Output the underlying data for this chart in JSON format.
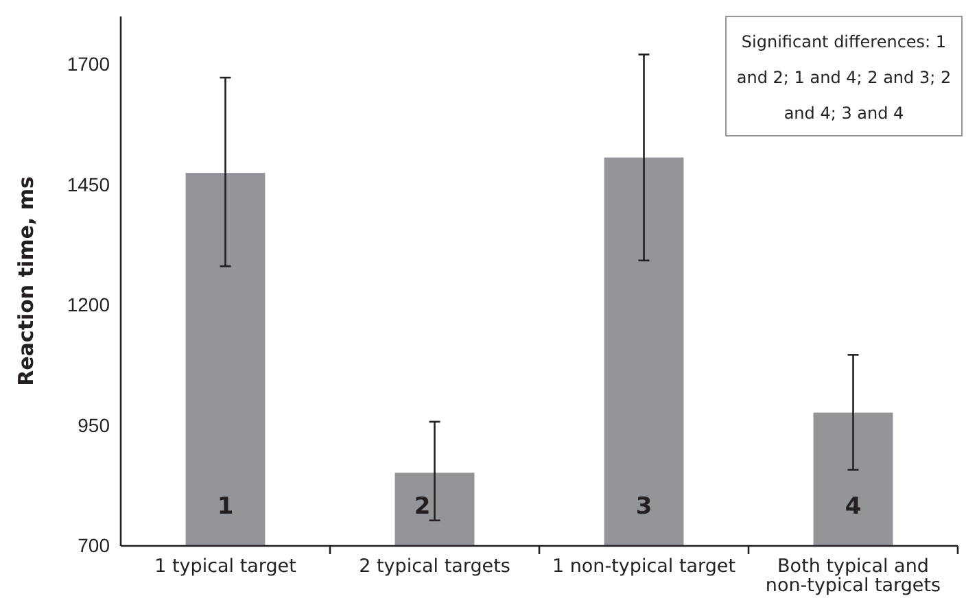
{
  "chart_data": {
    "type": "bar",
    "ylabel": "Reaction time, ms",
    "categories": [
      "1 typical target",
      "2 typical targets",
      "1 non-typical target",
      "Both typical and non-typical targets"
    ],
    "values": [
      1475,
      852,
      1507,
      977
    ],
    "errors": [
      [
        1281,
        1673
      ],
      [
        753,
        958
      ],
      [
        1293,
        1721
      ],
      [
        858,
        1097
      ]
    ],
    "color": "#939598",
    "ylim": [
      700,
      1800
    ],
    "yticks": [
      700,
      950,
      1200,
      1450,
      1700
    ],
    "grid": false,
    "annotations": [
      "1",
      "2",
      "3",
      "4",
      "Significant differences: 1 and 2; 1 and 4; 2 and 3; 2 and 4; 3 and 4"
    ]
  }
}
